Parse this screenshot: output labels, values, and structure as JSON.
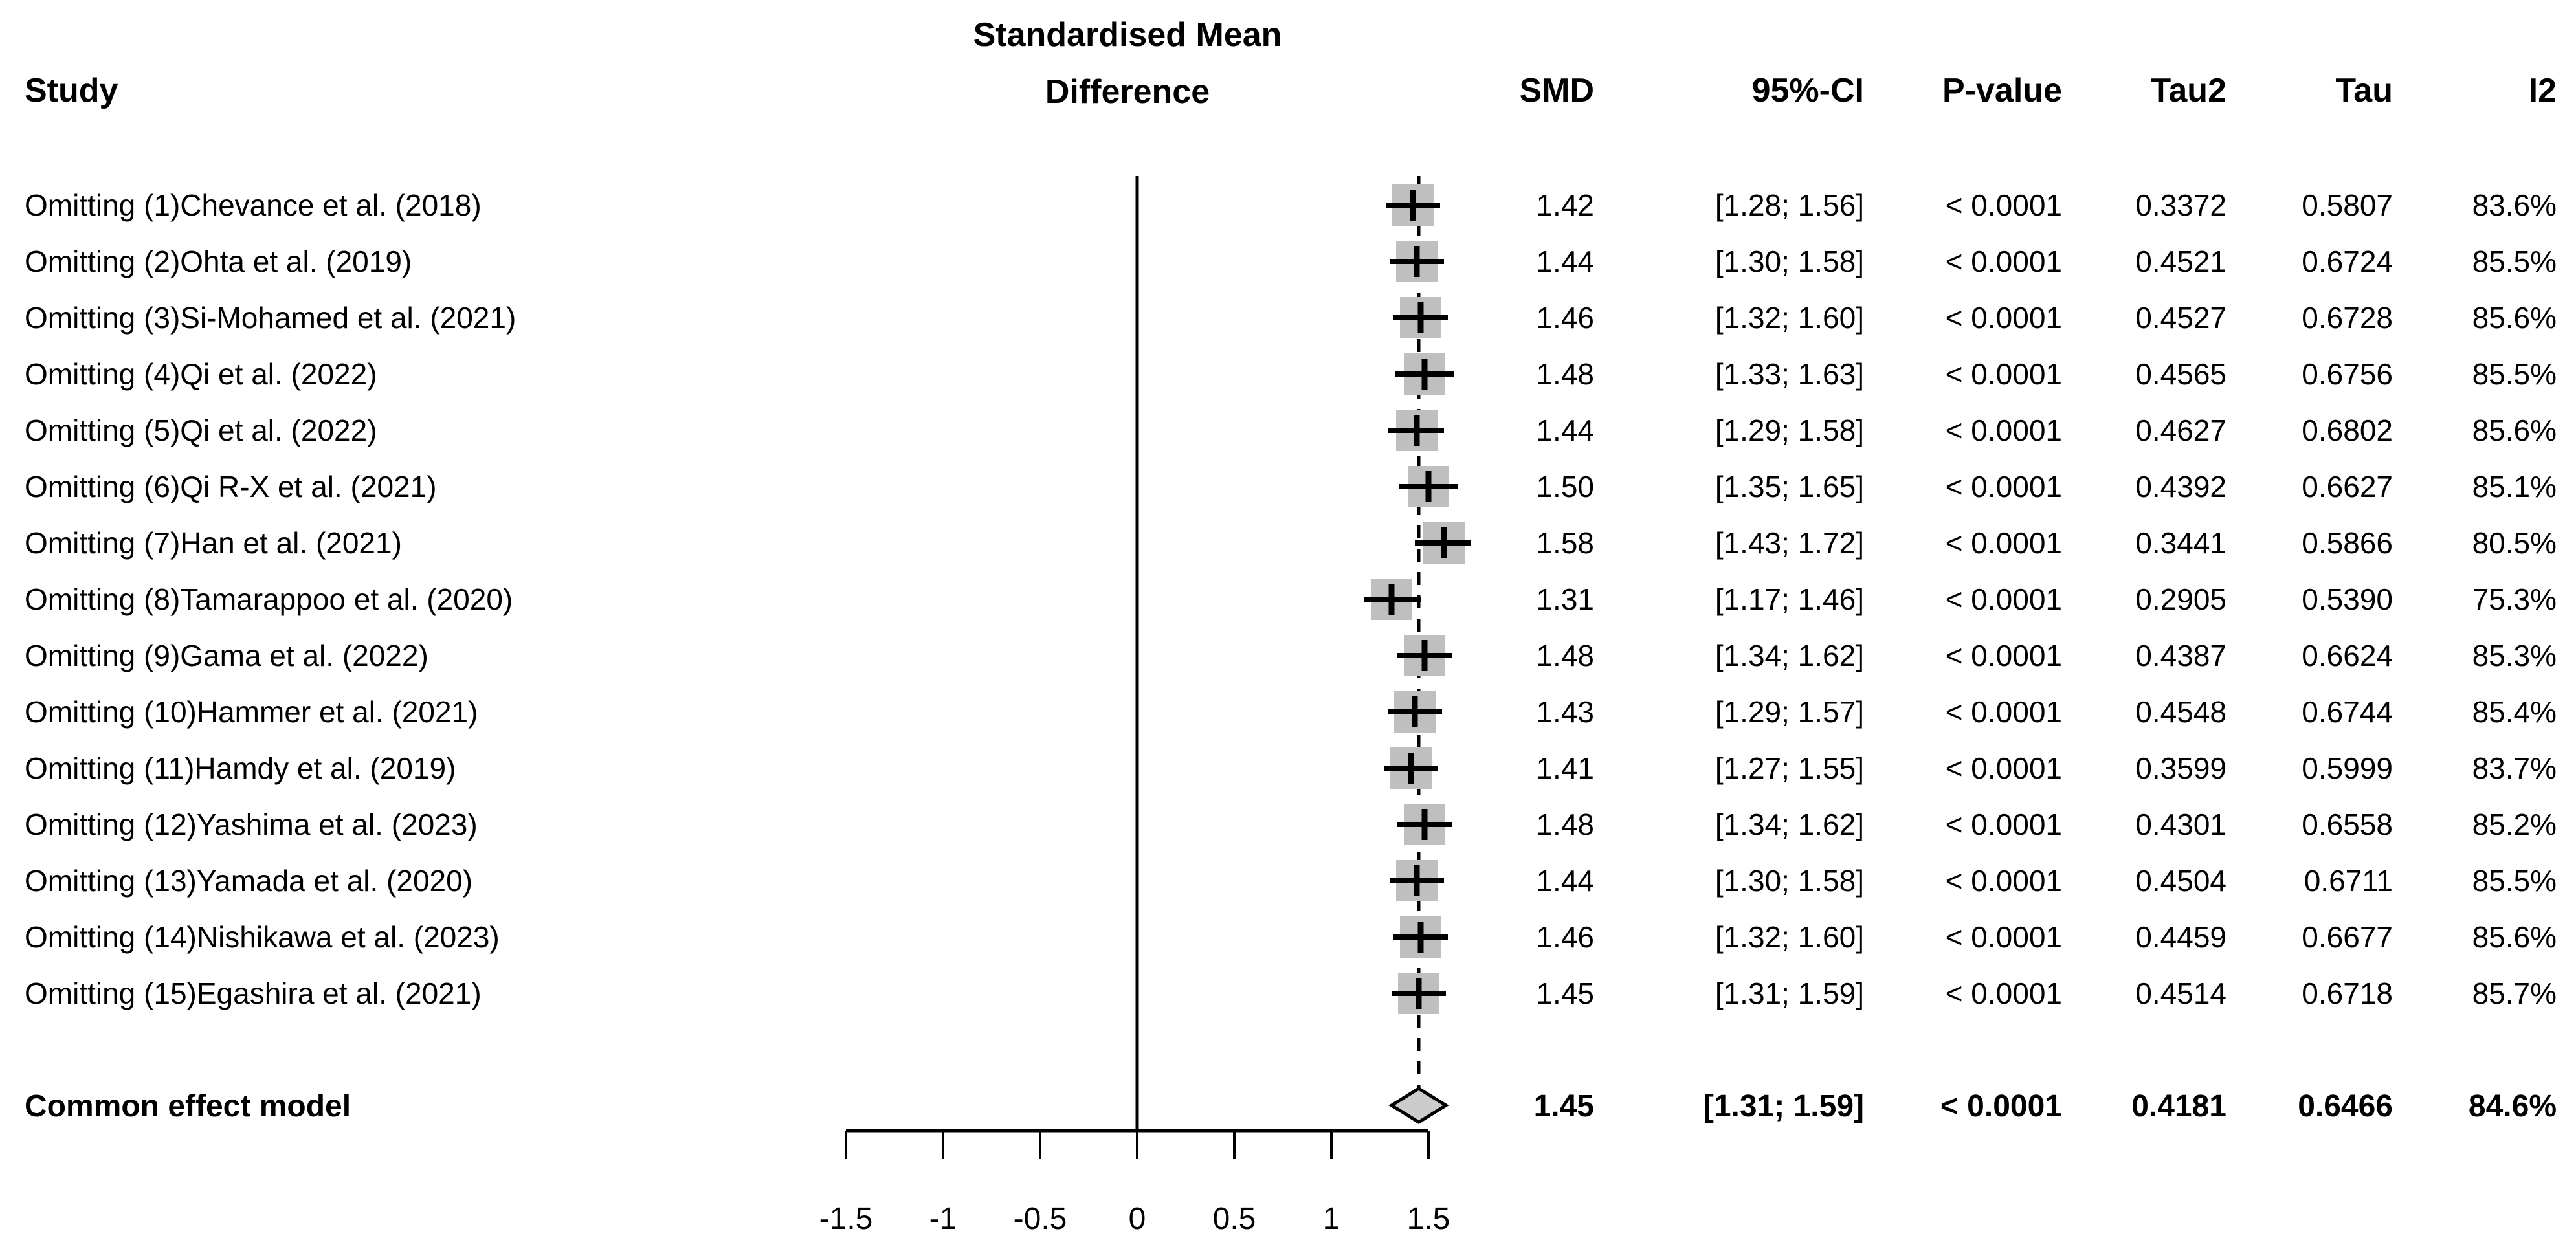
{
  "header": {
    "study_label": "Study",
    "plot_title_line1": "Standardised Mean",
    "plot_title_line2": "Difference",
    "columns": [
      "SMD",
      "95%-CI",
      "P-value",
      "Tau2",
      "Tau",
      "I2"
    ]
  },
  "chart_data": {
    "type": "forest",
    "title": "Standardised Mean Difference",
    "axis": {
      "xlim": [
        -1.5,
        1.5
      ],
      "ticks": [
        -1.5,
        -1,
        -0.5,
        0,
        0.5,
        1,
        1.5
      ],
      "tick_labels": [
        "-1.5",
        "-1",
        "-0.5",
        "0",
        "0.5",
        "1",
        "1.5"
      ],
      "zero_line": 0,
      "dashed_reference_line": 1.45,
      "grid": false
    },
    "studies": [
      {
        "label": "Omitting (1)Chevance et al. (2018)",
        "smd": 1.42,
        "ci_lo": 1.28,
        "ci_hi": 1.56,
        "smd_text": "1.42",
        "ci_text": "[1.28; 1.56]",
        "p_text": "< 0.0001",
        "tau2_text": "0.3372",
        "tau_text": "0.5807",
        "i2_text": "83.6%"
      },
      {
        "label": "Omitting (2)Ohta et al. (2019)",
        "smd": 1.44,
        "ci_lo": 1.3,
        "ci_hi": 1.58,
        "smd_text": "1.44",
        "ci_text": "[1.30; 1.58]",
        "p_text": "< 0.0001",
        "tau2_text": "0.4521",
        "tau_text": "0.6724",
        "i2_text": "85.5%"
      },
      {
        "label": "Omitting (3)Si-Mohamed et al. (2021)",
        "smd": 1.46,
        "ci_lo": 1.32,
        "ci_hi": 1.6,
        "smd_text": "1.46",
        "ci_text": "[1.32; 1.60]",
        "p_text": "< 0.0001",
        "tau2_text": "0.4527",
        "tau_text": "0.6728",
        "i2_text": "85.6%"
      },
      {
        "label": "Omitting (4)Qi et al. (2022)",
        "smd": 1.48,
        "ci_lo": 1.33,
        "ci_hi": 1.63,
        "smd_text": "1.48",
        "ci_text": "[1.33; 1.63]",
        "p_text": "< 0.0001",
        "tau2_text": "0.4565",
        "tau_text": "0.6756",
        "i2_text": "85.5%"
      },
      {
        "label": "Omitting (5)Qi et al. (2022)",
        "smd": 1.44,
        "ci_lo": 1.29,
        "ci_hi": 1.58,
        "smd_text": "1.44",
        "ci_text": "[1.29; 1.58]",
        "p_text": "< 0.0001",
        "tau2_text": "0.4627",
        "tau_text": "0.6802",
        "i2_text": "85.6%"
      },
      {
        "label": "Omitting (6)Qi R-X et al. (2021)",
        "smd": 1.5,
        "ci_lo": 1.35,
        "ci_hi": 1.65,
        "smd_text": "1.50",
        "ci_text": "[1.35; 1.65]",
        "p_text": "< 0.0001",
        "tau2_text": "0.4392",
        "tau_text": "0.6627",
        "i2_text": "85.1%"
      },
      {
        "label": "Omitting (7)Han et al. (2021)",
        "smd": 1.58,
        "ci_lo": 1.43,
        "ci_hi": 1.72,
        "smd_text": "1.58",
        "ci_text": "[1.43; 1.72]",
        "p_text": "< 0.0001",
        "tau2_text": "0.3441",
        "tau_text": "0.5866",
        "i2_text": "80.5%"
      },
      {
        "label": "Omitting (8)Tamarappoo et al. (2020)",
        "smd": 1.31,
        "ci_lo": 1.17,
        "ci_hi": 1.46,
        "smd_text": "1.31",
        "ci_text": "[1.17; 1.46]",
        "p_text": "< 0.0001",
        "tau2_text": "0.2905",
        "tau_text": "0.5390",
        "i2_text": "75.3%"
      },
      {
        "label": "Omitting (9)Gama et al. (2022)",
        "smd": 1.48,
        "ci_lo": 1.34,
        "ci_hi": 1.62,
        "smd_text": "1.48",
        "ci_text": "[1.34; 1.62]",
        "p_text": "< 0.0001",
        "tau2_text": "0.4387",
        "tau_text": "0.6624",
        "i2_text": "85.3%"
      },
      {
        "label": "Omitting (10)Hammer et al. (2021)",
        "smd": 1.43,
        "ci_lo": 1.29,
        "ci_hi": 1.57,
        "smd_text": "1.43",
        "ci_text": "[1.29; 1.57]",
        "p_text": "< 0.0001",
        "tau2_text": "0.4548",
        "tau_text": "0.6744",
        "i2_text": "85.4%"
      },
      {
        "label": "Omitting (11)Hamdy et al. (2019)",
        "smd": 1.41,
        "ci_lo": 1.27,
        "ci_hi": 1.55,
        "smd_text": "1.41",
        "ci_text": "[1.27; 1.55]",
        "p_text": "< 0.0001",
        "tau2_text": "0.3599",
        "tau_text": "0.5999",
        "i2_text": "83.7%"
      },
      {
        "label": "Omitting (12)Yashima et al. (2023)",
        "smd": 1.48,
        "ci_lo": 1.34,
        "ci_hi": 1.62,
        "smd_text": "1.48",
        "ci_text": "[1.34; 1.62]",
        "p_text": "< 0.0001",
        "tau2_text": "0.4301",
        "tau_text": "0.6558",
        "i2_text": "85.2%"
      },
      {
        "label": "Omitting (13)Yamada et al. (2020)",
        "smd": 1.44,
        "ci_lo": 1.3,
        "ci_hi": 1.58,
        "smd_text": "1.44",
        "ci_text": "[1.30; 1.58]",
        "p_text": "< 0.0001",
        "tau2_text": "0.4504",
        "tau_text": "0.6711",
        "i2_text": "85.5%"
      },
      {
        "label": "Omitting (14)Nishikawa et al. (2023)",
        "smd": 1.46,
        "ci_lo": 1.32,
        "ci_hi": 1.6,
        "smd_text": "1.46",
        "ci_text": "[1.32; 1.60]",
        "p_text": "< 0.0001",
        "tau2_text": "0.4459",
        "tau_text": "0.6677",
        "i2_text": "85.6%"
      },
      {
        "label": "Omitting (15)Egashira et al. (2021)",
        "smd": 1.45,
        "ci_lo": 1.31,
        "ci_hi": 1.59,
        "smd_text": "1.45",
        "ci_text": "[1.31; 1.59]",
        "p_text": "< 0.0001",
        "tau2_text": "0.4514",
        "tau_text": "0.6718",
        "i2_text": "85.7%"
      }
    ],
    "summary": {
      "label": "Common effect model",
      "smd": 1.45,
      "ci_lo": 1.31,
      "ci_hi": 1.59,
      "smd_text": "1.45",
      "ci_text": "[1.31; 1.59]",
      "p_text": "< 0.0001",
      "tau2_text": "0.4181",
      "tau_text": "0.6466",
      "i2_text": "84.6%"
    }
  },
  "colors": {
    "background": "#ffffff",
    "text": "#000000",
    "line": "#000000",
    "marker_fill": "#bfbfbf",
    "diamond_fill": "#cccccc"
  }
}
